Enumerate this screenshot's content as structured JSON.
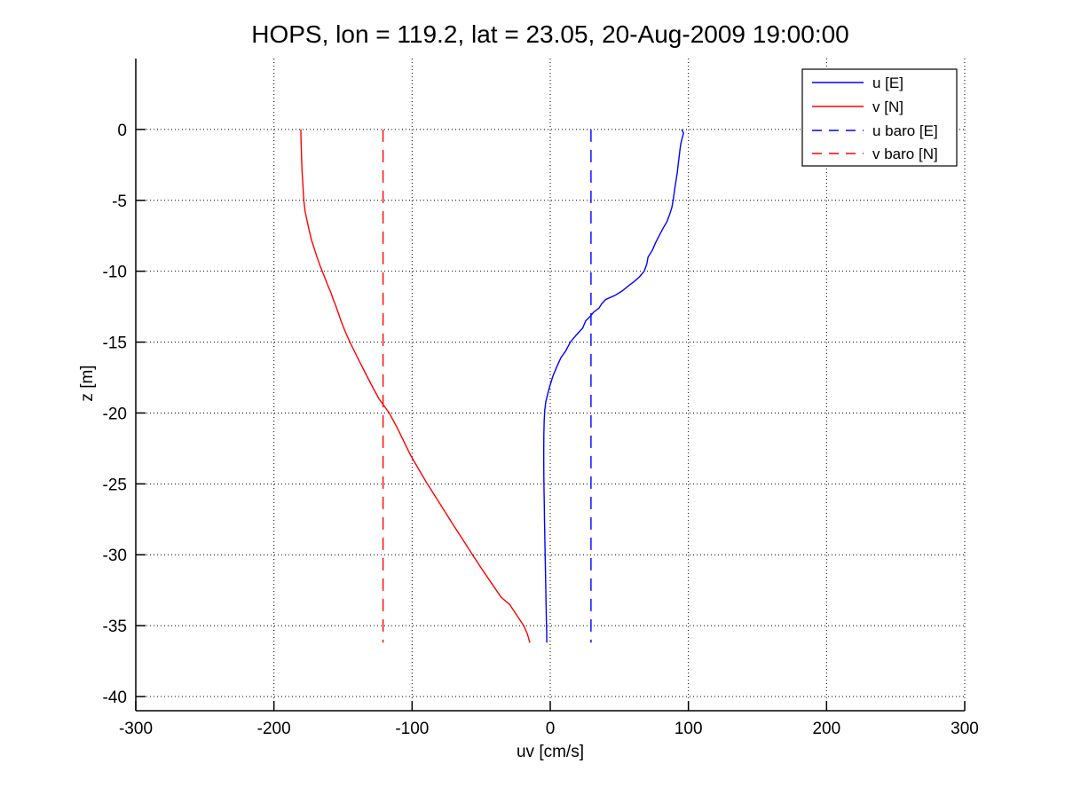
{
  "chart_data": {
    "type": "line",
    "title": "HOPS, lon = 119.2, lat = 23.05, 20-Aug-2009 19:00:00",
    "xlabel": "uv [cm/s]",
    "ylabel": "z [m]",
    "xlim": [
      -300,
      300
    ],
    "ylim": [
      -41,
      5
    ],
    "xticks": [
      -300,
      -200,
      -100,
      0,
      100,
      200,
      300
    ],
    "yticks": [
      0,
      -5,
      -10,
      -15,
      -20,
      -25,
      -30,
      -35,
      -40
    ],
    "grid": "on",
    "grid_style": "dotted",
    "axis_color": "#000000",
    "legend": {
      "position": "top-right",
      "border": "#000000",
      "background": "#ffffff"
    },
    "series": [
      {
        "name": "u [E]",
        "color": "#0000ff",
        "style": "solid",
        "points_format": "[value_cm_per_s, depth_m]",
        "points": [
          [
            95.2,
            0
          ],
          [
            96.5,
            -0.25
          ],
          [
            95.5,
            -0.6
          ],
          [
            94.5,
            -1
          ],
          [
            93.8,
            -1.5
          ],
          [
            93.2,
            -2
          ],
          [
            92.6,
            -2.5
          ],
          [
            92.0,
            -3
          ],
          [
            91.2,
            -3.5
          ],
          [
            90.4,
            -4
          ],
          [
            89.7,
            -4.5
          ],
          [
            89.0,
            -5
          ],
          [
            88.0,
            -5.5
          ],
          [
            86.4,
            -6
          ],
          [
            84.5,
            -6.5
          ],
          [
            81.5,
            -7
          ],
          [
            78.8,
            -7.5
          ],
          [
            76.2,
            -8
          ],
          [
            74.0,
            -8.5
          ],
          [
            70.8,
            -9
          ],
          [
            69.8,
            -9.5
          ],
          [
            68.0,
            -10
          ],
          [
            64.5,
            -10.4
          ],
          [
            61.0,
            -10.7
          ],
          [
            57.0,
            -11
          ],
          [
            52.0,
            -11.4
          ],
          [
            47.0,
            -11.7
          ],
          [
            40.0,
            -12
          ],
          [
            37.2,
            -12.3
          ],
          [
            35.3,
            -12.6
          ],
          [
            31.3,
            -12.9
          ],
          [
            28.8,
            -13.2
          ],
          [
            25.6,
            -13.5
          ],
          [
            23.5,
            -14
          ],
          [
            18.8,
            -14.5
          ],
          [
            14.5,
            -15
          ],
          [
            11.3,
            -15.6
          ],
          [
            7.7,
            -16.1
          ],
          [
            4.5,
            -16.8
          ],
          [
            1.9,
            -17.4
          ],
          [
            0.0,
            -18
          ],
          [
            -1.7,
            -18.6
          ],
          [
            -3.2,
            -19.2
          ],
          [
            -4.0,
            -19.8
          ],
          [
            -4.4,
            -20.5
          ],
          [
            -4.6,
            -21.5
          ],
          [
            -4.7,
            -22.5
          ],
          [
            -4.7,
            -23.5
          ],
          [
            -4.6,
            -24.5
          ],
          [
            -4.5,
            -25.5
          ],
          [
            -4.3,
            -26.5
          ],
          [
            -4.2,
            -27.5
          ],
          [
            -4.0,
            -28.5
          ],
          [
            -3.8,
            -29.5
          ],
          [
            -3.6,
            -30.5
          ],
          [
            -3.4,
            -31.5
          ],
          [
            -3.2,
            -32.5
          ],
          [
            -3.0,
            -33.5
          ],
          [
            -2.8,
            -34.5
          ],
          [
            -2.6,
            -35.5
          ],
          [
            -2.5,
            -36.2
          ]
        ]
      },
      {
        "name": "v [N]",
        "color": "#ff0000",
        "style": "solid",
        "points_format": "[value_cm_per_s, depth_m]",
        "points": [
          [
            -180.5,
            0
          ],
          [
            -180.3,
            -1
          ],
          [
            -180.0,
            -2
          ],
          [
            -179.6,
            -3
          ],
          [
            -179.0,
            -4
          ],
          [
            -178.4,
            -5
          ],
          [
            -177.4,
            -5.8
          ],
          [
            -176.3,
            -6.3
          ],
          [
            -174.8,
            -7
          ],
          [
            -172.8,
            -7.8
          ],
          [
            -170.5,
            -8.5
          ],
          [
            -168.8,
            -9
          ],
          [
            -167.0,
            -9.5
          ],
          [
            -165.0,
            -10
          ],
          [
            -163.0,
            -10.5
          ],
          [
            -161.0,
            -11
          ],
          [
            -158.8,
            -11.5
          ],
          [
            -157.0,
            -12
          ],
          [
            -155.0,
            -12.5
          ],
          [
            -153.2,
            -13
          ],
          [
            -151.5,
            -13.5
          ],
          [
            -149.5,
            -14
          ],
          [
            -147.3,
            -14.5
          ],
          [
            -145.0,
            -15
          ],
          [
            -140.0,
            -16
          ],
          [
            -134.8,
            -17
          ],
          [
            -129.5,
            -18
          ],
          [
            -124.0,
            -19
          ],
          [
            -116.5,
            -20
          ],
          [
            -111.0,
            -21
          ],
          [
            -106.0,
            -22
          ],
          [
            -101.0,
            -23
          ],
          [
            -95.0,
            -24
          ],
          [
            -89.0,
            -25
          ],
          [
            -82.5,
            -26
          ],
          [
            -76.0,
            -27
          ],
          [
            -69.5,
            -28
          ],
          [
            -62.8,
            -29
          ],
          [
            -56.3,
            -30
          ],
          [
            -49.5,
            -31
          ],
          [
            -42.5,
            -32
          ],
          [
            -35.5,
            -33
          ],
          [
            -29.4,
            -33.5
          ],
          [
            -24.0,
            -34.3
          ],
          [
            -19.2,
            -35
          ],
          [
            -16.5,
            -35.6
          ],
          [
            -14.8,
            -36.2
          ]
        ]
      },
      {
        "name": "u baro [E]",
        "color": "#0000ff",
        "style": "dashed",
        "points_format": "[value_cm_per_s, depth_m]",
        "points": [
          [
            29.5,
            0
          ],
          [
            29.5,
            -36.2
          ]
        ]
      },
      {
        "name": "v baro [N]",
        "color": "#ff0000",
        "style": "dashed",
        "points_format": "[value_cm_per_s, depth_m]",
        "points": [
          [
            -121,
            0
          ],
          [
            -121,
            -36.2
          ]
        ]
      }
    ]
  }
}
